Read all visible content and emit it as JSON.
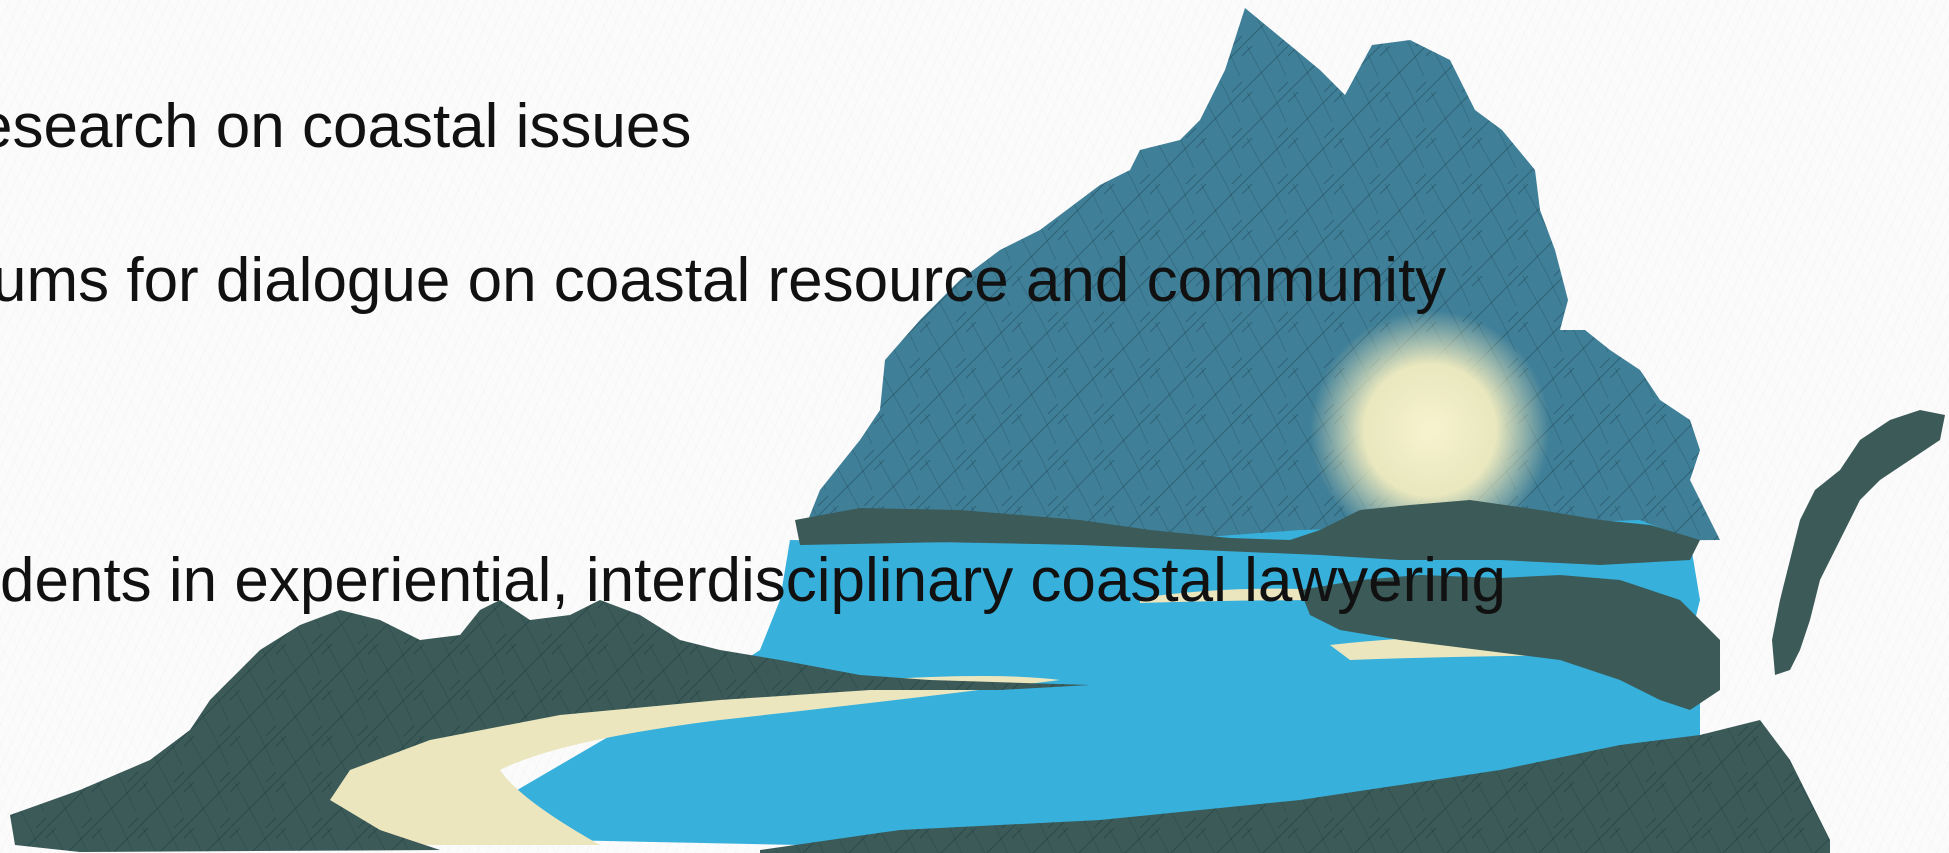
{
  "bullets": [
    {
      "text": "esearch on coastal issues"
    },
    {
      "text": "ums for dialogue on coastal resource and community"
    },
    {
      "text": "dents in experiential, interdisciplinary coastal lawyering"
    }
  ],
  "illustration": {
    "subject": "Virginia state silhouette",
    "colors": {
      "mountains": "#3f7f98",
      "hills": "#3b5a58",
      "water": "#38b0dc",
      "sand": "#ece6bf",
      "sun": "#f4efc2"
    }
  }
}
